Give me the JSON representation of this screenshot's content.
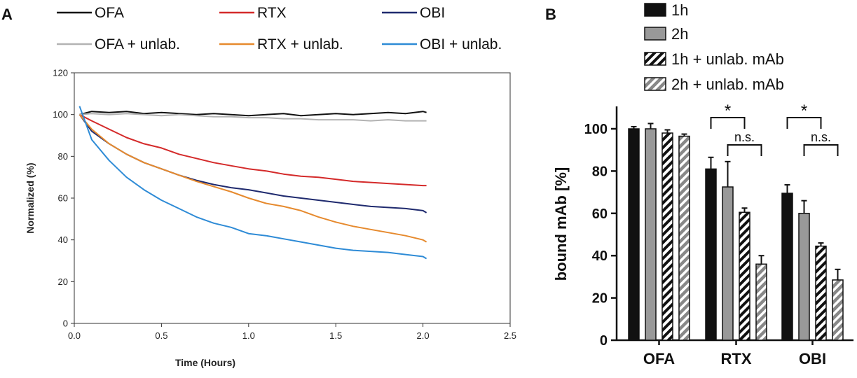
{
  "chart_data": [
    {
      "panel_label": "A",
      "type": "line",
      "xlabel": "Time (Hours)",
      "ylabel": "Normalized (%)",
      "xlim": [
        0,
        2.5
      ],
      "ylim": [
        0,
        120
      ],
      "x_ticks": [
        "0.0",
        "0.5",
        "1.0",
        "1.5",
        "2.0",
        "2.5"
      ],
      "y_ticks": [
        "0",
        "20",
        "40",
        "60",
        "80",
        "100",
        "120"
      ],
      "legend_position": "top",
      "series": [
        {
          "name": "OFA",
          "color": "#111111",
          "x": [
            0.03,
            0.1,
            0.2,
            0.3,
            0.4,
            0.5,
            0.6,
            0.7,
            0.8,
            0.9,
            1.0,
            1.1,
            1.2,
            1.3,
            1.4,
            1.5,
            1.6,
            1.7,
            1.8,
            1.9,
            2.0,
            2.02
          ],
          "y": [
            100,
            101.5,
            101,
            101.5,
            100.5,
            101,
            100.5,
            100,
            100.5,
            100,
            99.5,
            100,
            100.5,
            99.5,
            100,
            100.5,
            100,
            100.5,
            101,
            100.5,
            101.5,
            101
          ]
        },
        {
          "name": "RTX",
          "color": "#d42a2a",
          "x": [
            0.03,
            0.1,
            0.2,
            0.3,
            0.4,
            0.5,
            0.6,
            0.7,
            0.8,
            0.9,
            1.0,
            1.1,
            1.2,
            1.3,
            1.4,
            1.5,
            1.6,
            1.7,
            1.8,
            1.9,
            2.0,
            2.02
          ],
          "y": [
            100,
            97,
            93,
            89,
            86,
            84,
            81,
            79,
            77,
            75.5,
            74,
            73,
            71.5,
            70.5,
            70,
            69,
            68,
            67.5,
            67,
            66.5,
            66,
            66
          ]
        },
        {
          "name": "OBI",
          "color": "#1f2a6e",
          "x": [
            0.03,
            0.1,
            0.2,
            0.3,
            0.4,
            0.5,
            0.6,
            0.7,
            0.8,
            0.9,
            1.0,
            1.1,
            1.2,
            1.3,
            1.4,
            1.5,
            1.6,
            1.7,
            1.8,
            1.9,
            2.0,
            2.02
          ],
          "y": [
            100,
            92,
            86,
            81,
            77,
            74,
            71,
            68.5,
            66.5,
            65,
            64,
            62.5,
            61,
            60,
            59,
            58,
            57,
            56,
            55.5,
            55,
            54,
            53
          ]
        },
        {
          "name": "OFA + unlab.",
          "color": "#b3b3b3",
          "x": [
            0.03,
            0.1,
            0.2,
            0.3,
            0.4,
            0.5,
            0.6,
            0.7,
            0.8,
            0.9,
            1.0,
            1.1,
            1.2,
            1.3,
            1.4,
            1.5,
            1.6,
            1.7,
            1.8,
            1.9,
            2.0,
            2.02
          ],
          "y": [
            100,
            100.5,
            100,
            100.5,
            100,
            99.5,
            100,
            99.5,
            99,
            99,
            98.5,
            98.5,
            98,
            98,
            97.5,
            97.5,
            97.5,
            97,
            97.5,
            97,
            97,
            97
          ]
        },
        {
          "name": "RTX + unlab.",
          "color": "#e68a2e",
          "x": [
            0.03,
            0.1,
            0.2,
            0.3,
            0.4,
            0.5,
            0.6,
            0.7,
            0.8,
            0.9,
            1.0,
            1.1,
            1.2,
            1.3,
            1.4,
            1.5,
            1.6,
            1.7,
            1.8,
            1.9,
            2.0,
            2.02
          ],
          "y": [
            100,
            93,
            86,
            81,
            77,
            74,
            71,
            68,
            65.5,
            63,
            60,
            57.5,
            56,
            54,
            51,
            48.5,
            46.5,
            45,
            43.5,
            42,
            40,
            39
          ]
        },
        {
          "name": "OBI + unlab.",
          "color": "#2e8bd6",
          "x": [
            0.03,
            0.1,
            0.2,
            0.3,
            0.4,
            0.5,
            0.6,
            0.7,
            0.8,
            0.9,
            1.0,
            1.1,
            1.2,
            1.3,
            1.4,
            1.5,
            1.6,
            1.7,
            1.8,
            1.9,
            2.0,
            2.02
          ],
          "y": [
            104,
            88,
            78,
            70,
            64,
            59,
            55,
            51,
            48,
            46,
            43,
            42,
            40.5,
            39,
            37.5,
            36,
            35,
            34.5,
            34,
            33,
            32,
            31
          ]
        }
      ]
    },
    {
      "panel_label": "B",
      "type": "bar",
      "ylabel": "bound mAb [%]",
      "ylim": [
        0,
        100
      ],
      "y_ticks": [
        "0",
        "20",
        "40",
        "60",
        "80",
        "100"
      ],
      "categories": [
        "OFA",
        "RTX",
        "OBI"
      ],
      "legend_position": "top",
      "series": [
        {
          "name": "1h",
          "fill": "solid-black",
          "values": [
            100,
            81,
            69.5
          ],
          "errors": [
            1,
            5.5,
            4
          ]
        },
        {
          "name": "2h",
          "fill": "solid-gray",
          "values": [
            100,
            72.5,
            60
          ],
          "errors": [
            2.5,
            12,
            6
          ]
        },
        {
          "name": "1h + unlab. mAb",
          "fill": "hatch-black",
          "values": [
            98,
            60.5,
            44.5
          ],
          "errors": [
            1.5,
            2,
            1.5
          ]
        },
        {
          "name": "2h + unlab. mAb",
          "fill": "hatch-gray",
          "values": [
            96.5,
            36,
            28.5
          ],
          "errors": [
            1,
            4,
            5
          ]
        }
      ],
      "annotations": [
        {
          "category": "RTX",
          "from_series": "1h",
          "to_series": "1h + unlab. mAb",
          "label": "*",
          "level": 1
        },
        {
          "category": "RTX",
          "from_series": "2h",
          "to_series": "2h + unlab. mAb",
          "label": "n.s.",
          "level": 2
        },
        {
          "category": "OBI",
          "from_series": "1h",
          "to_series": "1h + unlab. mAb",
          "label": "*",
          "level": 1
        },
        {
          "category": "OBI",
          "from_series": "2h",
          "to_series": "2h + unlab. mAb",
          "label": "n.s.",
          "level": 2
        }
      ]
    }
  ]
}
